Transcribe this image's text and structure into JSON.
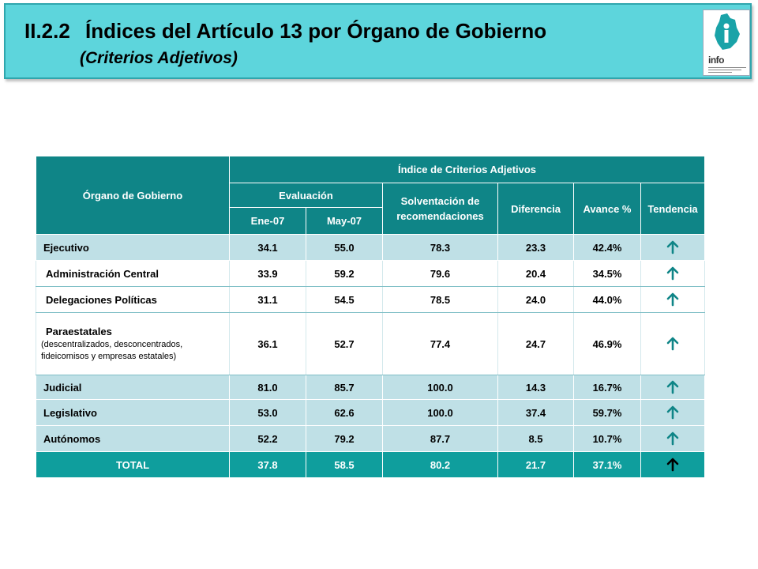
{
  "header": {
    "code": "II.2.2",
    "title": "Índices del Artículo 13 por Órgano de Gobierno",
    "subtitle": "(Criterios Adjetivos)",
    "logo_text": "info"
  },
  "table": {
    "col_organo": "Órgano de Gobierno",
    "group_title": "Índice de Criterios Adjetivos",
    "col_evaluacion": "Evaluación",
    "col_ene": "Ene-07",
    "col_may": "May-07",
    "col_solventacion": "Solventación de recomendaciones",
    "col_diferencia": "Diferencia",
    "col_avance": "Avance %",
    "col_tendencia": "Tendencia",
    "rows": [
      {
        "name": "Ejecutivo",
        "ene": "34.1",
        "may": "55.0",
        "solv": "78.3",
        "dif": "23.3",
        "avance": "42.4%",
        "trend": "up"
      },
      {
        "name": "Administración Central",
        "ene": "33.9",
        "may": "59.2",
        "solv": "79.6",
        "dif": "20.4",
        "avance": "34.5%",
        "trend": "up"
      },
      {
        "name": "Delegaciones Políticas",
        "ene": "31.1",
        "may": "54.5",
        "solv": "78.5",
        "dif": "24.0",
        "avance": "44.0%",
        "trend": "up"
      },
      {
        "name": "Paraestatales",
        "note": "(descentralizados, desconcentrados, fideicomisos y empresas estatales)",
        "ene": "36.1",
        "may": "52.7",
        "solv": "77.4",
        "dif": "24.7",
        "avance": "46.9%",
        "trend": "up"
      },
      {
        "name": "Judicial",
        "ene": "81.0",
        "may": "85.7",
        "solv": "100.0",
        "dif": "14.3",
        "avance": "16.7%",
        "trend": "up"
      },
      {
        "name": "Legislativo",
        "ene": "53.0",
        "may": "62.6",
        "solv": "100.0",
        "dif": "37.4",
        "avance": "59.7%",
        "trend": "up"
      },
      {
        "name": "Autónomos",
        "ene": "52.2",
        "may": "79.2",
        "solv": "87.7",
        "dif": "8.5",
        "avance": "10.7%",
        "trend": "up"
      }
    ],
    "total": {
      "name": "TOTAL",
      "ene": "37.8",
      "may": "58.5",
      "solv": "80.2",
      "dif": "21.7",
      "avance": "37.1%",
      "trend": "up"
    }
  },
  "colors": {
    "header_bg": "#5dd5dc",
    "table_header": "#0f8587",
    "row_fill": "#bfe0e6",
    "total_fill": "#0f9e9d"
  }
}
